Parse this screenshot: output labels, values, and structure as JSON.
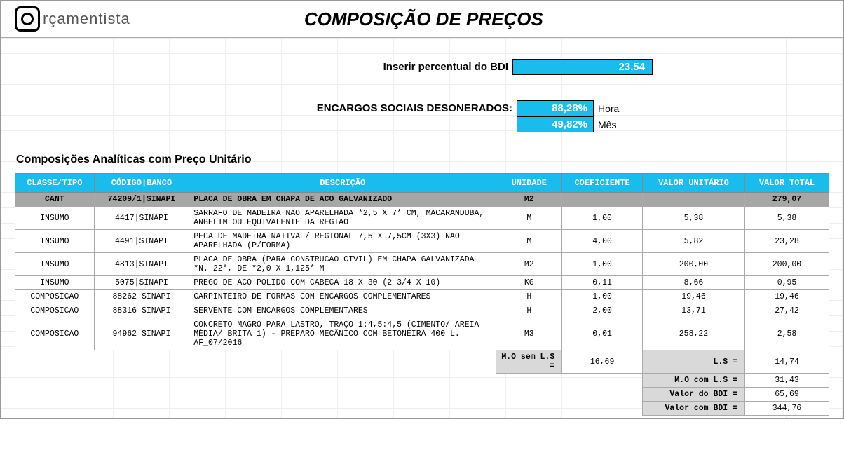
{
  "brand": {
    "name": "rçamentista"
  },
  "title": "COMPOSIÇÃO DE PREÇOS",
  "bdi": {
    "label": "Inserir percentual do BDI",
    "value": "23,54"
  },
  "encargos": {
    "label": "ENCARGOS SOCIAIS DESONERADOS:",
    "hora_value": "88,28%",
    "hora_unit": "Hora",
    "mes_value": "49,82%",
    "mes_unit": "Mês"
  },
  "section_title": "Composições Analíticas com Preço Unitário",
  "columns": {
    "classe": "CLASSE/TIPO",
    "codigo": "CÓDIGO|BANCO",
    "desc": "DESCRIÇÃO",
    "un": "UNIDADE",
    "coef": "COEFICIENTE",
    "vu": "VALOR UNITÁRIO",
    "vt": "VALOR TOTAL"
  },
  "main_row": {
    "classe": "CANT",
    "codigo": "74209/1|SINAPI",
    "desc": "PLACA DE OBRA EM CHAPA DE ACO GALVANIZADO",
    "un": "M2",
    "vt": "279,07"
  },
  "rows": [
    {
      "classe": "INSUMO",
      "codigo": "4417|SINAPI",
      "desc": "SARRAFO DE MADEIRA NAO APARELHADA *2,5 X 7* CM, MACARANDUBA, ANGELIM OU EQUIVALENTE DA REGIAO",
      "un": "M",
      "coef": "1,00",
      "vu": "5,38",
      "vt": "5,38"
    },
    {
      "classe": "INSUMO",
      "codigo": "4491|SINAPI",
      "desc": "PECA DE MADEIRA NATIVA / REGIONAL 7,5 X 7,5CM (3X3) NAO APARELHADA (P/FORMA)",
      "un": "M",
      "coef": "4,00",
      "vu": "5,82",
      "vt": "23,28"
    },
    {
      "classe": "INSUMO",
      "codigo": "4813|SINAPI",
      "desc": "PLACA DE OBRA (PARA CONSTRUCAO CIVIL) EM CHAPA GALVANIZADA *N. 22*, DE *2,0 X 1,125* M",
      "un": "M2",
      "coef": "1,00",
      "vu": "200,00",
      "vt": "200,00"
    },
    {
      "classe": "INSUMO",
      "codigo": "5075|SINAPI",
      "desc": "PREGO DE ACO POLIDO COM CABECA 18 X 30 (2 3/4 X 10)",
      "un": "KG",
      "coef": "0,11",
      "vu": "8,66",
      "vt": "0,95"
    },
    {
      "classe": "COMPOSICAO",
      "codigo": "88262|SINAPI",
      "desc": "CARPINTEIRO DE FORMAS COM ENCARGOS COMPLEMENTARES",
      "un": "H",
      "coef": "1,00",
      "vu": "19,46",
      "vt": "19,46"
    },
    {
      "classe": "COMPOSICAO",
      "codigo": "88316|SINAPI",
      "desc": "SERVENTE COM ENCARGOS COMPLEMENTARES",
      "un": "H",
      "coef": "2,00",
      "vu": "13,71",
      "vt": "27,42"
    },
    {
      "classe": "COMPOSICAO",
      "codigo": "94962|SINAPI",
      "desc": "CONCRETO MAGRO PARA LASTRO, TRAÇO 1:4,5:4,5 (CIMENTO/ AREIA MÉDIA/ BRITA 1)  - PREPARO MECÂNICO COM BETONEIRA 400 L. AF_07/2016",
      "un": "M3",
      "coef": "0,01",
      "vu": "258,22",
      "vt": "2,58"
    }
  ],
  "summary": {
    "mo_sem_ls_label": "M.O sem L.S =",
    "mo_sem_ls_val": "16,69",
    "ls_label": "L.S =",
    "ls_val": "14,74",
    "mo_com_ls_label": "M.O com L.S =",
    "mo_com_ls_val": "31,43",
    "bdi_label": "Valor do BDI =",
    "bdi_val": "65,69",
    "total_label": "Valor com BDI =",
    "total_val": "344,76"
  },
  "colors": {
    "accent": "#18bced",
    "gray_dark": "#a6a6a6",
    "gray_light": "#d9d9d9"
  }
}
